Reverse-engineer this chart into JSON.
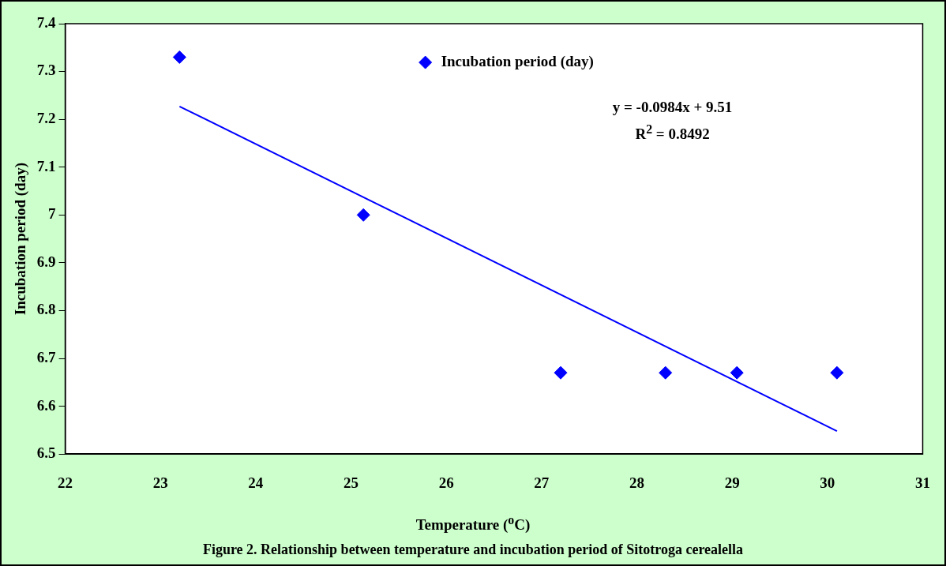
{
  "chart_data": {
    "type": "scatter",
    "title": "Figure 2. Relationship between temperature and incubation period of Sitotroga cerealella",
    "xlabel": "Temperature ($^{o}$C)",
    "ylabel": "Incubation period (day)",
    "annotations": [
      "y = -0.0984x + 9.51",
      "R$^{2}$ = 0.8492"
    ],
    "xlim": [
      22,
      31
    ],
    "xticks": [
      22,
      23,
      24,
      25,
      26,
      27,
      28,
      29,
      30,
      31
    ],
    "ylim": [
      6.5,
      7.4
    ],
    "yticks": [
      6.5,
      6.6,
      6.7,
      6.8,
      6.9,
      7,
      7.1,
      7.2,
      7.3,
      7.4
    ],
    "grid": false,
    "legend": "top",
    "series": [
      {
        "name": "Incubation period (day)",
        "color": "#0000ff",
        "marker": "diamond",
        "x": [
          23.2,
          25.13,
          27.2,
          28.3,
          29.05,
          30.1
        ],
        "values": [
          7.33,
          7.0,
          6.67,
          6.67,
          6.67,
          6.67
        ]
      },
      {
        "type": "line",
        "color": "#0000ff",
        "marker": "none",
        "x": [
          23.2,
          30.1
        ],
        "values": [
          7.227,
          6.548
        ]
      }
    ]
  }
}
